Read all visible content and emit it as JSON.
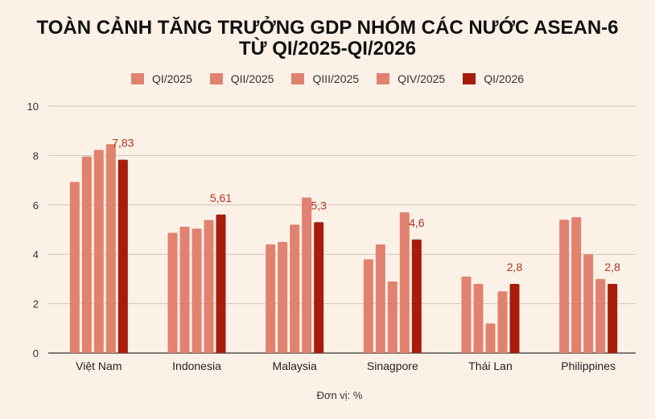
{
  "chart_data": {
    "type": "bar",
    "title": "TOÀN CẢNH TĂNG TRƯỞNG GDP NHÓM CÁC NƯỚC ASEAN-6",
    "subtitle": "TỪ QI/2025-QI/2026",
    "unit_label": "Đơn vị: %",
    "categories": [
      "Việt Nam",
      "Indonesia",
      "Malaysia",
      "Sinagpore",
      "Thái Lan",
      "Philippines"
    ],
    "series": [
      {
        "name": "QI/2025",
        "color": "#e0826f",
        "values": [
          6.93,
          4.87,
          4.4,
          3.8,
          3.1,
          5.4
        ]
      },
      {
        "name": "QII/2025",
        "color": "#e0826f",
        "values": [
          7.96,
          5.12,
          4.5,
          4.4,
          2.8,
          5.5
        ]
      },
      {
        "name": "QIII/2025",
        "color": "#e0826f",
        "values": [
          8.23,
          5.04,
          5.2,
          2.9,
          1.2,
          4.0
        ]
      },
      {
        "name": "QIV/2025",
        "color": "#e0826f",
        "values": [
          8.46,
          5.39,
          6.3,
          5.7,
          2.5,
          3.0
        ]
      },
      {
        "name": "QI/2026",
        "color": "#a81c0b",
        "values": [
          7.83,
          5.61,
          5.3,
          4.6,
          2.8,
          2.8
        ]
      }
    ],
    "data_labels": [
      "7,83",
      "5,61",
      "5,3",
      "4,6",
      "2,8",
      "2,8"
    ],
    "data_label_color": "#b2321f",
    "yticks": [
      "0",
      "2",
      "4",
      "6",
      "8",
      "10"
    ],
    "ylim": [
      0,
      10
    ],
    "grid": true,
    "legend_position": "top"
  }
}
